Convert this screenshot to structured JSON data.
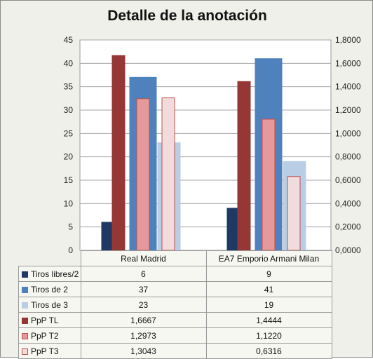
{
  "chart_data": {
    "type": "bar",
    "title": "Detalle de la anotación",
    "categories": [
      "Real Madrid",
      "EA7 Emporio Armani Milan"
    ],
    "y_left": {
      "range": [
        0,
        45
      ],
      "ticks": [
        "0",
        "5",
        "10",
        "15",
        "20",
        "25",
        "30",
        "35",
        "40",
        "45"
      ]
    },
    "y_right": {
      "range": [
        0,
        1.8
      ],
      "ticks": [
        "0,0000",
        "0,2000",
        "0,4000",
        "0,6000",
        "0,8000",
        "1,0000",
        "1,2000",
        "1,4000",
        "1,6000",
        "1,8000"
      ]
    },
    "grid": "horizontal",
    "legend": "data-table",
    "series": [
      {
        "name": "Tiros libres/2",
        "axis": "left",
        "values": [
          6,
          9
        ],
        "labels": [
          "6",
          "9"
        ],
        "color": "#1f3864",
        "border": "#1f3864"
      },
      {
        "name": "Tiros de 2",
        "axis": "left",
        "values": [
          37,
          41
        ],
        "labels": [
          "37",
          "41"
        ],
        "color": "#4f81bd",
        "border": "#4f81bd"
      },
      {
        "name": "Tiros de 3",
        "axis": "left",
        "values": [
          23,
          19
        ],
        "labels": [
          "23",
          "19"
        ],
        "color": "#b9cde5",
        "border": "#b9cde5"
      },
      {
        "name": "PpP TL",
        "axis": "right",
        "values": [
          1.6667,
          1.4444
        ],
        "labels": [
          "1,6667",
          "1,4444"
        ],
        "color": "#953735",
        "border": "#953735"
      },
      {
        "name": "PpP T2",
        "axis": "right",
        "values": [
          1.2973,
          1.122
        ],
        "labels": [
          "1,2973",
          "1,1220"
        ],
        "color": "#e6999a",
        "border": "#c0504d"
      },
      {
        "name": "PpP T3",
        "axis": "right",
        "values": [
          1.3043,
          0.6316
        ],
        "labels": [
          "1,3043",
          "0,6316"
        ],
        "color": "#f2dcdb",
        "border": "#c0504d"
      }
    ]
  }
}
